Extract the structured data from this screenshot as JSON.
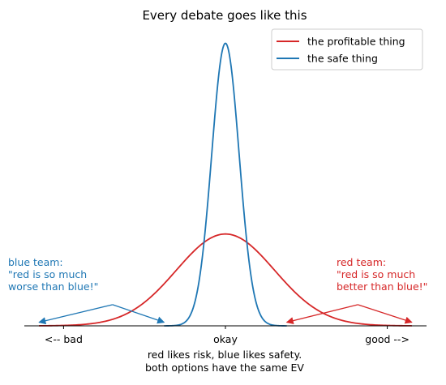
{
  "chart_data": {
    "type": "line",
    "title": "Every debate goes like this",
    "xlabel_lines": [
      "red likes risk, blue likes safety.",
      "both options have the same EV"
    ],
    "ylabel": "",
    "xlim": [
      -4.1,
      4.1
    ],
    "ylim": [
      0,
      4.2
    ],
    "x_tick_labels": [
      {
        "x": -3.3,
        "label": "<-- bad"
      },
      {
        "x": 0,
        "label": "okay"
      },
      {
        "x": 3.3,
        "label": "good -->"
      }
    ],
    "show_y_axis": false,
    "grid": false,
    "legend_position": "top-right",
    "series": [
      {
        "name": "the profitable thing",
        "color": "#d62728",
        "dist": "normal",
        "mean": 0,
        "sd": 1,
        "peak": 1.3,
        "x_range": [
          -3.8,
          3.8
        ]
      },
      {
        "name": "the safe thing",
        "color": "#1f77b4",
        "dist": "normal",
        "mean": 0,
        "sd": 0.28,
        "peak": 4.0,
        "x_range": [
          -1.25,
          1.25
        ]
      }
    ],
    "annotations": [
      {
        "id": "blue",
        "lines": [
          "blue team:",
          "\"red is so much",
          "worse than blue!\""
        ],
        "color": "#1f77b4",
        "arrow_origin": [
          -2.3,
          0.3
        ],
        "arrow_targets": [
          [
            -3.8,
            0.05
          ],
          [
            -1.25,
            0.05
          ]
        ]
      },
      {
        "id": "red",
        "lines": [
          "red team:",
          "\"red is so much",
          "better than blue!\""
        ],
        "color": "#d62728",
        "arrow_origin": [
          2.7,
          0.3
        ],
        "arrow_targets": [
          [
            1.25,
            0.05
          ],
          [
            3.8,
            0.05
          ]
        ]
      }
    ]
  }
}
